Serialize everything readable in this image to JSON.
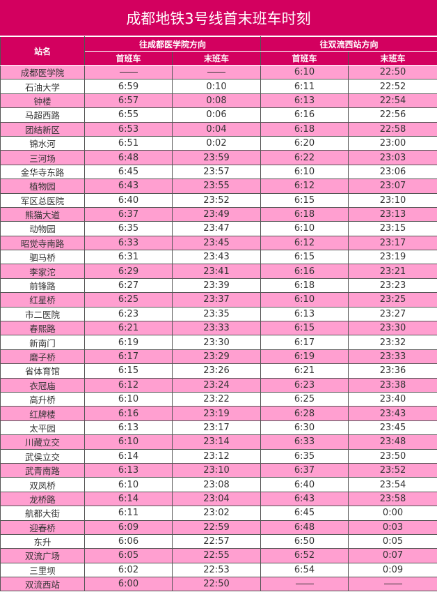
{
  "title": "成都地铁3号线首末班车时刻",
  "header": {
    "station": "站名",
    "dir1": "往成都医学院方向",
    "dir2": "往双流西站方向",
    "first": "首班车",
    "last": "末班车"
  },
  "colors": {
    "header_bg": "#d3005f",
    "pink_row": "#ff9fd0",
    "white_row": "#ffffff"
  },
  "rows": [
    [
      "成都医学院",
      "—",
      "—",
      "6:10",
      "22:50"
    ],
    [
      "石油大学",
      "6:59",
      "0:10",
      "6:11",
      "22:52"
    ],
    [
      "钟楼",
      "6:57",
      "0:08",
      "6:13",
      "22:54"
    ],
    [
      "马超西路",
      "6:55",
      "0:06",
      "6:16",
      "22:56"
    ],
    [
      "团结新区",
      "6:53",
      "0:04",
      "6:18",
      "22:58"
    ],
    [
      "锦水河",
      "6:51",
      "0:02",
      "6:20",
      "23:00"
    ],
    [
      "三河场",
      "6:48",
      "23:59",
      "6:22",
      "23:03"
    ],
    [
      "金华寺东路",
      "6:45",
      "23:57",
      "6:10",
      "23:06"
    ],
    [
      "植物园",
      "6:43",
      "23:55",
      "6:12",
      "23:07"
    ],
    [
      "军区总医院",
      "6:40",
      "23:52",
      "6:15",
      "23:10"
    ],
    [
      "熊猫大道",
      "6:37",
      "23:49",
      "6:18",
      "23:13"
    ],
    [
      "动物园",
      "6:35",
      "23:47",
      "6:10",
      "23:15"
    ],
    [
      "昭觉寺南路",
      "6:33",
      "23:45",
      "6:12",
      "23:17"
    ],
    [
      "驷马桥",
      "6:31",
      "23:43",
      "6:15",
      "23:19"
    ],
    [
      "李家沱",
      "6:29",
      "23:41",
      "6:16",
      "23:21"
    ],
    [
      "前锋路",
      "6:27",
      "23:39",
      "6:18",
      "23:23"
    ],
    [
      "红星桥",
      "6:25",
      "23:37",
      "6:10",
      "23:25"
    ],
    [
      "市二医院",
      "6:23",
      "23:35",
      "6:13",
      "23:27"
    ],
    [
      "春熙路",
      "6:21",
      "23:33",
      "6:15",
      "23:30"
    ],
    [
      "新南门",
      "6:19",
      "23:30",
      "6:17",
      "23:32"
    ],
    [
      "磨子桥",
      "6:17",
      "23:29",
      "6:19",
      "23:33"
    ],
    [
      "省体育馆",
      "6:15",
      "23:26",
      "6:21",
      "23:36"
    ],
    [
      "衣冠庙",
      "6:12",
      "23:24",
      "6:23",
      "23:38"
    ],
    [
      "高升桥",
      "6:10",
      "23:22",
      "6:25",
      "23:40"
    ],
    [
      "红牌楼",
      "6:16",
      "23:19",
      "6:28",
      "23:43"
    ],
    [
      "太平园",
      "6:13",
      "23:17",
      "6:30",
      "23:45"
    ],
    [
      "川藏立交",
      "6:10",
      "23:14",
      "6:33",
      "23:48"
    ],
    [
      "武侯立交",
      "6:14",
      "23:12",
      "6:35",
      "23:50"
    ],
    [
      "武青南路",
      "6:13",
      "23:10",
      "6:37",
      "23:52"
    ],
    [
      "双凤桥",
      "6:10",
      "23:08",
      "6:40",
      "23:54"
    ],
    [
      "龙桥路",
      "6:14",
      "23:04",
      "6:43",
      "23:58"
    ],
    [
      "航都大街",
      "6:11",
      "23:02",
      "6:45",
      "0:00"
    ],
    [
      "迎春桥",
      "6:09",
      "22:59",
      "6:48",
      "0:03"
    ],
    [
      "东升",
      "6:06",
      "22:57",
      "6:50",
      "0:05"
    ],
    [
      "双流广场",
      "6:05",
      "22:55",
      "6:52",
      "0:07"
    ],
    [
      "三里坝",
      "6:02",
      "22:53",
      "6:54",
      "0:09"
    ],
    [
      "双流西站",
      "6:00",
      "22:50",
      "—",
      "—"
    ]
  ]
}
